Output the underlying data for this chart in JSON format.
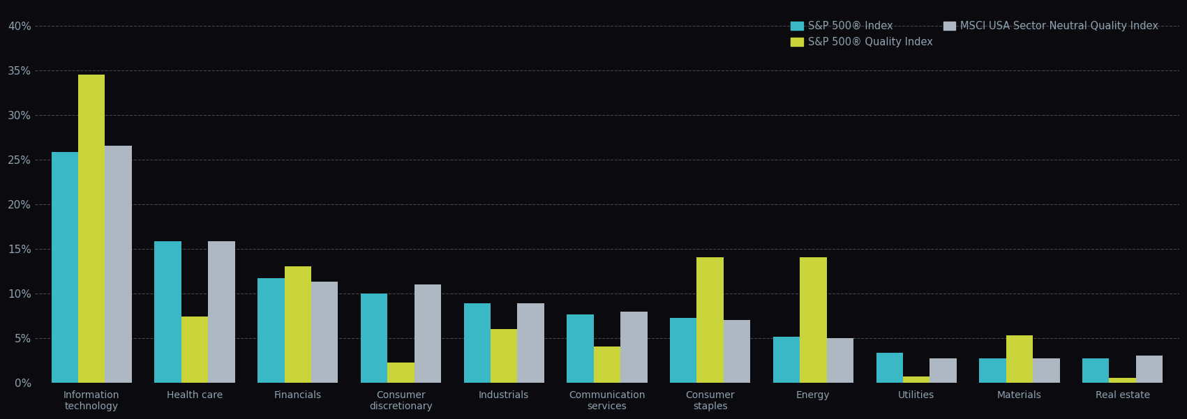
{
  "categories": [
    "Information\ntechnology",
    "Health care",
    "Financials",
    "Consumer\ndiscretionary",
    "Industrials",
    "Communication\nservices",
    "Consumer\nstaples",
    "Energy",
    "Utilities",
    "Materials",
    "Real estate"
  ],
  "series": {
    "S&P 500® Index": [
      25.8,
      15.8,
      11.7,
      10.0,
      8.9,
      7.6,
      7.2,
      5.1,
      3.3,
      2.7,
      2.7
    ],
    "S&P 500® Quality Index": [
      34.5,
      7.4,
      13.0,
      2.2,
      6.0,
      4.0,
      14.0,
      14.0,
      0.7,
      5.3,
      0.5
    ],
    "MSCI USA Sector Neutral Quality Index": [
      26.5,
      15.8,
      11.3,
      11.0,
      8.9,
      7.9,
      7.0,
      5.0,
      2.7,
      2.7,
      3.0
    ]
  },
  "colors": {
    "S&P 500® Index": "#3ab8c5",
    "S&P 500® Quality Index": "#c8d43a",
    "MSCI USA Sector Neutral Quality Index": "#adb8c2"
  },
  "ylim": [
    0,
    42
  ],
  "yticks": [
    0,
    5,
    10,
    15,
    20,
    25,
    30,
    35,
    40
  ],
  "background_color": "#0a0a0f",
  "plot_bg_color": "#0a0a0f",
  "text_color": "#8fa3b0",
  "grid_color": "#ffffff",
  "bar_width": 0.26,
  "legend_fontsize": 10.5,
  "tick_fontsize": 11.0,
  "xtick_fontsize": 10.0
}
